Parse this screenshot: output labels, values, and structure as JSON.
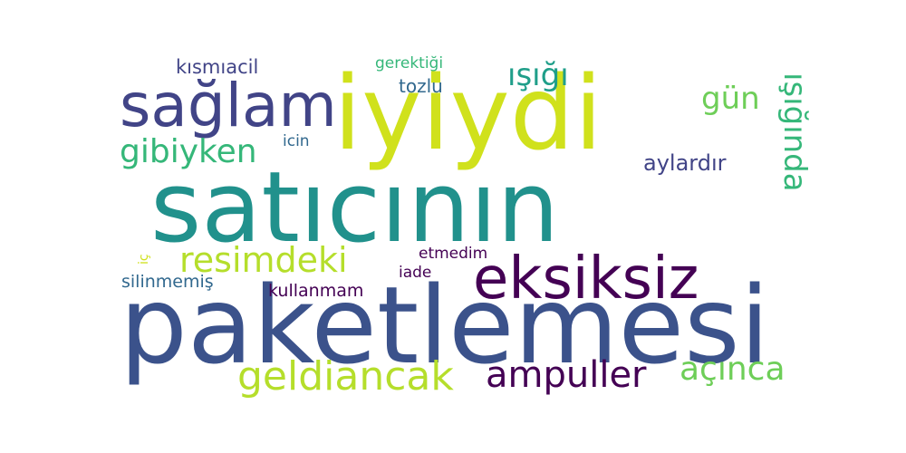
{
  "words": {
    "paketlemesi": "paketlemesi",
    "saticinin": "satıcının",
    "iyiydi": "iyiydi",
    "saglam": "sağlam",
    "eksiksiz": "eksiksiz",
    "geldiancak": "geldiancak",
    "ampuller": "ampuller",
    "acinca": "açınca",
    "resimdeki": "resimdeki",
    "gibiyken": "gibiyken",
    "isigi": "ışığı",
    "gun": "gün",
    "isiginda": "ışığında",
    "aylardir": "aylardır",
    "kismiacil": "kısmıacil",
    "gerektigi": "gerektiği",
    "tozlu": "tozlu",
    "icin": "icin",
    "etmedim": "etmedim",
    "iade": "iade",
    "silinmemis": "silinmemiş",
    "kullanmam": "kullanmam",
    "ic": "iç"
  },
  "colors": {
    "dark_purple": "#440154",
    "indigo": "#3b528b",
    "slate_blue": "#414487",
    "blue": "#31688e",
    "teal": "#21918c",
    "teal_green": "#1f9e89",
    "green": "#35b779",
    "light_green": "#6ece58",
    "lime": "#b5de2b",
    "yellow_green": "#d0e11c"
  }
}
